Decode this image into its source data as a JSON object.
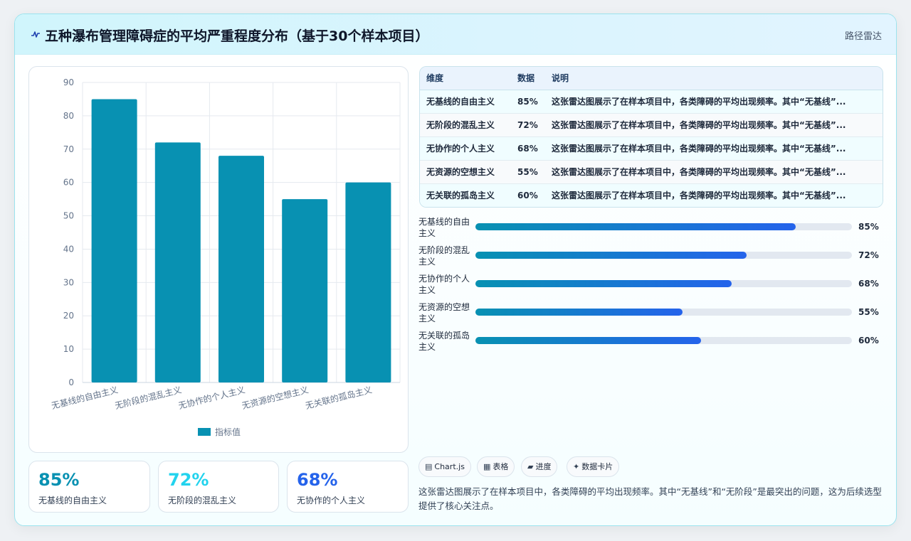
{
  "header": {
    "title": "五种瀑布管理障碍症的平均严重程度分布（基于30个样本项目）",
    "tag": "路径雷达",
    "icon": "signal-wave-icon"
  },
  "chart_data": {
    "type": "bar",
    "categories": [
      "无基线的自由主义",
      "无阶段的混乱主义",
      "无协作的个人主义",
      "无资源的空想主义",
      "无关联的孤岛主义"
    ],
    "series": [
      {
        "name": "指标值",
        "values": [
          85,
          72,
          68,
          55,
          60
        ]
      }
    ],
    "ylim": [
      0,
      90
    ],
    "yticks": [
      0,
      10,
      20,
      30,
      40,
      50,
      60,
      70,
      80,
      90
    ],
    "grid": true,
    "legend": "bottom",
    "colors": {
      "bar": "#0891b2"
    }
  },
  "stats": [
    {
      "value": "85%",
      "label": "无基线的自由主义",
      "color": "#0891b2"
    },
    {
      "value": "72%",
      "label": "无阶段的混乱主义",
      "color": "#22d3ee"
    },
    {
      "value": "68%",
      "label": "无协作的个人主义",
      "color": "#2563eb"
    }
  ],
  "table": {
    "headers": [
      "维度",
      "数据",
      "说明"
    ],
    "rows": [
      [
        "无基线的自由主义",
        "85%",
        "这张雷达图展示了在样本项目中，各类障碍的平均出现频率。其中“无基线”..."
      ],
      [
        "无阶段的混乱主义",
        "72%",
        "这张雷达图展示了在样本项目中，各类障碍的平均出现频率。其中“无基线”..."
      ],
      [
        "无协作的个人主义",
        "68%",
        "这张雷达图展示了在样本项目中，各类障碍的平均出现频率。其中“无基线”..."
      ],
      [
        "无资源的空想主义",
        "55%",
        "这张雷达图展示了在样本项目中，各类障碍的平均出现频率。其中“无基线”..."
      ],
      [
        "无关联的孤岛主义",
        "60%",
        "这张雷达图展示了在样本项目中，各类障碍的平均出现频率。其中“无基线”..."
      ]
    ]
  },
  "progress": [
    {
      "label": "无基线的自由主义",
      "value": 85,
      "pct": "85%"
    },
    {
      "label": "无阶段的混乱主义",
      "value": 72,
      "pct": "72%"
    },
    {
      "label": "无协作的个人主义",
      "value": 68,
      "pct": "68%"
    },
    {
      "label": "无资源的空想主义",
      "value": 55,
      "pct": "55%"
    },
    {
      "label": "无关联的孤岛主义",
      "value": 60,
      "pct": "60%"
    }
  ],
  "chips": [
    {
      "icon": "chart-icon",
      "glyph": "▤",
      "label": "Chart.js"
    },
    {
      "icon": "table-icon",
      "glyph": "▦",
      "label": "表格"
    },
    {
      "icon": "progress-icon",
      "glyph": "▰",
      "label": "进度"
    },
    {
      "icon": "sparkle-icon",
      "glyph": "✦",
      "label": "数据卡片"
    }
  ],
  "footnote": "这张雷达图展示了在样本项目中，各类障碍的平均出现频率。其中“无基线”和“无阶段”是最突出的问题，这为后续选型提供了核心关注点。"
}
